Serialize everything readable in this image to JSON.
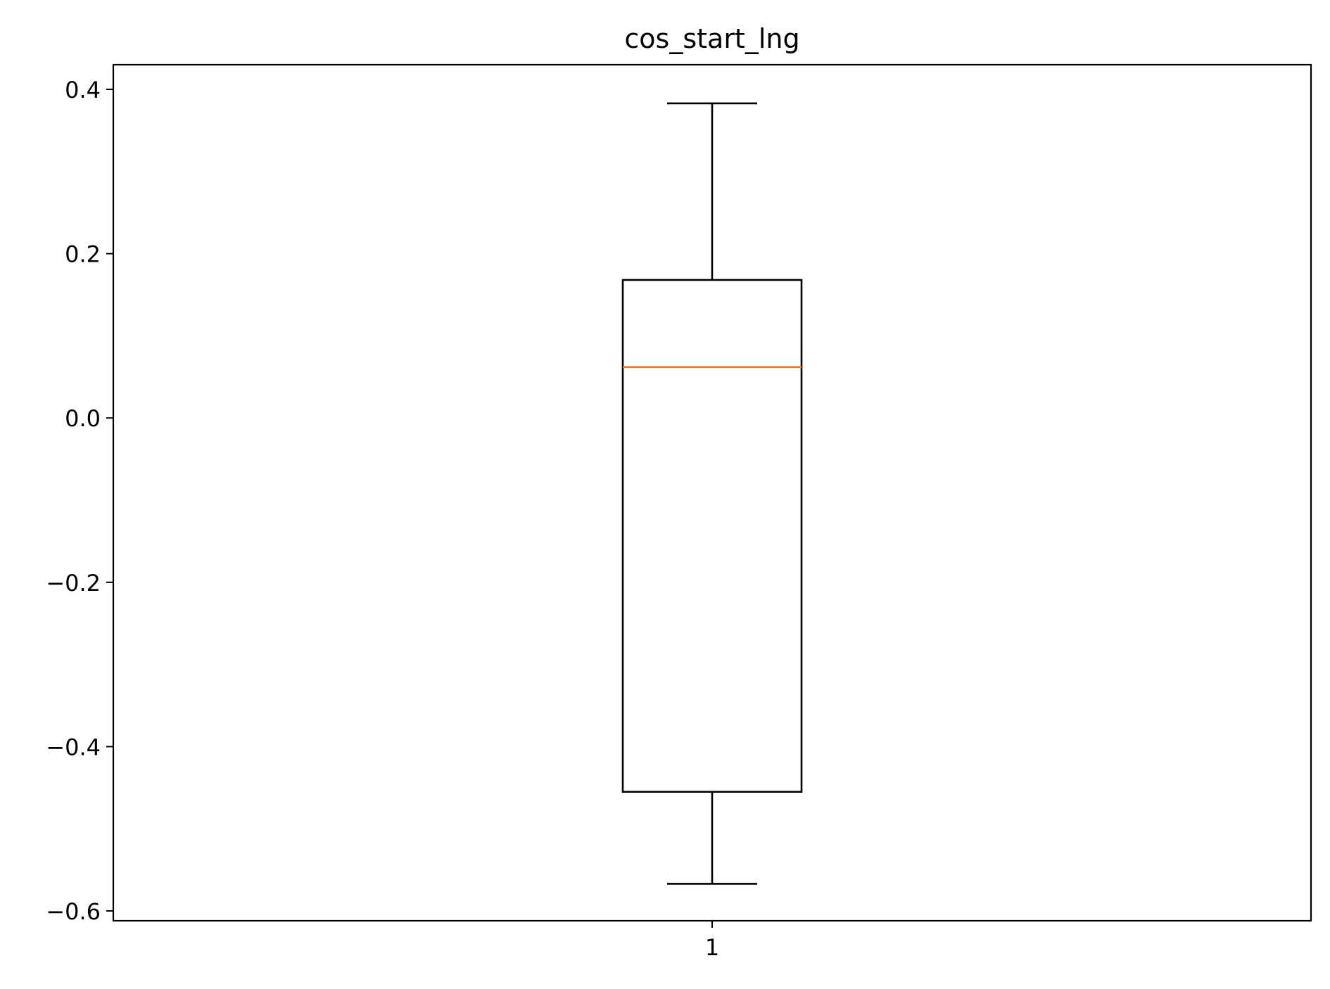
{
  "chart_data": {
    "type": "box",
    "title": "cos_start_lng",
    "xlabel": "",
    "ylabel": "",
    "categories": [
      "1"
    ],
    "boxes": [
      {
        "category": "1",
        "whisker_low": -0.567,
        "q1": -0.455,
        "median": 0.062,
        "q3": 0.168,
        "whisker_high": 0.383
      }
    ],
    "ylim": [
      -0.612,
      0.43
    ],
    "yticks": [
      {
        "value": 0.4,
        "label": "0.4"
      },
      {
        "value": 0.2,
        "label": "0.2"
      },
      {
        "value": 0.0,
        "label": "0.0"
      },
      {
        "value": -0.2,
        "label": "−0.2"
      },
      {
        "value": -0.4,
        "label": "−0.4"
      },
      {
        "value": -0.6,
        "label": "−0.6"
      }
    ],
    "grid": false,
    "colors": {
      "box": "#000000",
      "median": "#f07f10"
    }
  }
}
